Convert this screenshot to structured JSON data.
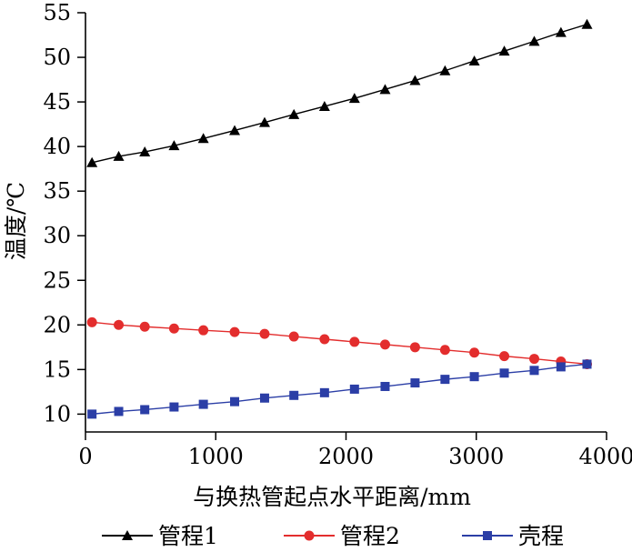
{
  "chart_data": {
    "type": "line",
    "title": "",
    "xlabel": "与换热管起点水平距离/mm",
    "ylabel": "温度/℃",
    "xlim": [
      0,
      4000
    ],
    "ylim": [
      8,
      55
    ],
    "xticks": [
      0,
      1000,
      2000,
      3000,
      4000
    ],
    "yticks": [
      10,
      15,
      20,
      25,
      30,
      35,
      40,
      45,
      50,
      55
    ],
    "grid": false,
    "legend_position": "bottom",
    "x": [
      50,
      255,
      455,
      680,
      905,
      1145,
      1375,
      1600,
      1835,
      2065,
      2300,
      2530,
      2760,
      2985,
      3215,
      3445,
      3650,
      3850
    ],
    "series": [
      {
        "name": "管程1",
        "color": "#000000",
        "marker": "triangle",
        "values": [
          38.2,
          38.9,
          39.4,
          40.1,
          40.9,
          41.8,
          42.7,
          43.6,
          44.5,
          45.4,
          46.4,
          47.4,
          48.5,
          49.6,
          50.7,
          51.8,
          52.8,
          53.7
        ]
      },
      {
        "name": "管程2",
        "color": "#e32d2d",
        "marker": "circle",
        "values": [
          20.3,
          20.0,
          19.8,
          19.6,
          19.4,
          19.2,
          19.0,
          18.7,
          18.4,
          18.1,
          17.8,
          17.5,
          17.2,
          16.9,
          16.5,
          16.2,
          15.9,
          15.6
        ]
      },
      {
        "name": "壳程",
        "color": "#2b3ea6",
        "marker": "square",
        "values": [
          10.0,
          10.3,
          10.5,
          10.8,
          11.1,
          11.4,
          11.8,
          12.1,
          12.4,
          12.8,
          13.1,
          13.5,
          13.9,
          14.2,
          14.6,
          14.9,
          15.3,
          15.6
        ]
      }
    ]
  }
}
